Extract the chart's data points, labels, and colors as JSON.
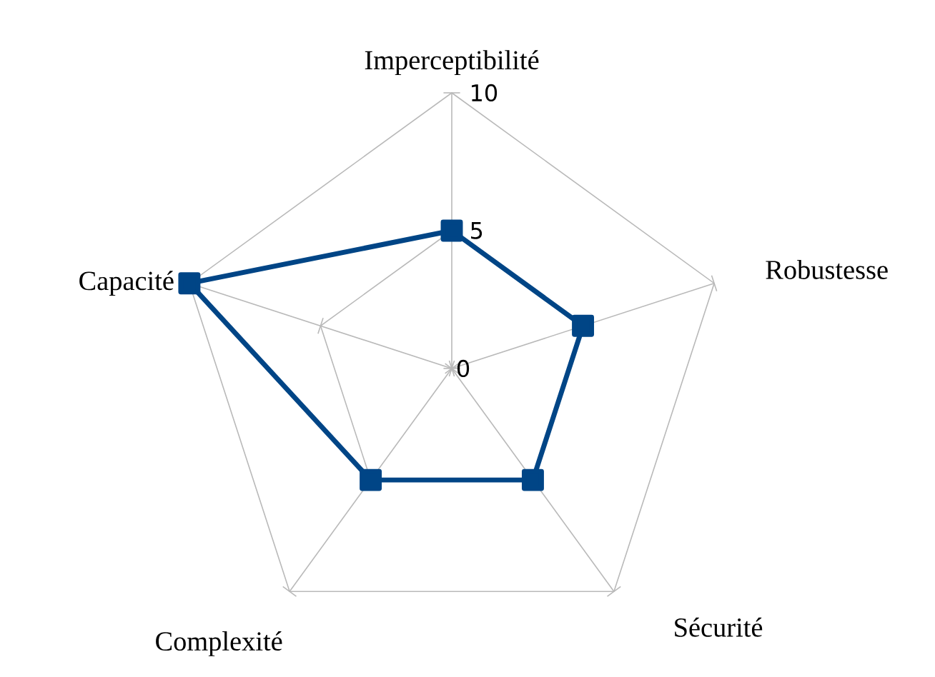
{
  "chart_data": {
    "type": "radar",
    "categories": [
      "Imperceptibilité",
      "Robustesse",
      "Sécurité",
      "Complexité",
      "Capacité"
    ],
    "series": [
      {
        "color": "#004586",
        "values": [
          5,
          5,
          5,
          5,
          10
        ]
      }
    ],
    "ylim": [
      0,
      10
    ],
    "yticks": [
      0,
      5,
      10
    ],
    "grid": true,
    "marker": "square",
    "line_style": "solid"
  }
}
